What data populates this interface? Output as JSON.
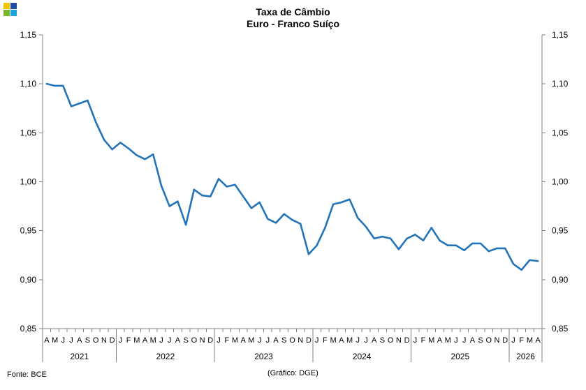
{
  "header": {
    "title": "Taxa de Câmbio",
    "subtitle": "Euro - Franco Suíço"
  },
  "logo": {
    "colors": [
      "#f2c500",
      "#1f4e9e",
      "#76b82a",
      "#1aa3dd"
    ]
  },
  "footer": {
    "source": "Fonte: BCE",
    "credit": "(Gráfico: DGE)"
  },
  "chart_data": {
    "type": "line",
    "title": "Taxa de Câmbio",
    "subtitle": "Euro - Franco Suíço",
    "ylim": [
      0.85,
      1.15
    ],
    "yticks": [
      "0,85",
      "0,90",
      "0,95",
      "1,00",
      "1,05",
      "1,10",
      "1,15"
    ],
    "ytick_values": [
      0.85,
      0.9,
      0.95,
      1.0,
      1.05,
      1.1,
      1.15
    ],
    "y_axis_both_sides": true,
    "grid": false,
    "line_color": "#2373b8",
    "month_labels": [
      "A",
      "M",
      "J",
      "J",
      "A",
      "S",
      "O",
      "N",
      "D",
      "J",
      "F",
      "M",
      "A",
      "M",
      "J",
      "J",
      "A",
      "S",
      "O",
      "N",
      "D",
      "J",
      "F",
      "M",
      "A",
      "M",
      "J",
      "J",
      "A",
      "S",
      "O",
      "N",
      "D",
      "J",
      "F",
      "M",
      "A",
      "M",
      "J",
      "J",
      "A",
      "S",
      "O",
      "N",
      "D",
      "J",
      "F",
      "M",
      "A",
      "M",
      "J",
      "J",
      "A",
      "S",
      "O",
      "N",
      "D",
      "J",
      "F",
      "M",
      "A"
    ],
    "year_groups": [
      {
        "label": "2021",
        "count": 9
      },
      {
        "label": "2022",
        "count": 12
      },
      {
        "label": "2023",
        "count": 12
      },
      {
        "label": "2024",
        "count": 12
      },
      {
        "label": "2025",
        "count": 12
      },
      {
        "label": "2026",
        "count": 4
      }
    ],
    "values": [
      1.1,
      1.098,
      1.098,
      1.077,
      1.08,
      1.083,
      1.061,
      1.043,
      1.033,
      1.04,
      1.034,
      1.027,
      1.023,
      1.028,
      0.996,
      0.975,
      0.98,
      0.956,
      0.992,
      0.986,
      0.985,
      1.003,
      0.995,
      0.997,
      0.985,
      0.973,
      0.979,
      0.962,
      0.958,
      0.967,
      0.961,
      0.957,
      0.926,
      0.935,
      0.953,
      0.977,
      0.979,
      0.982,
      0.963,
      0.954,
      0.942,
      0.944,
      0.942,
      0.931,
      0.942,
      0.946,
      0.94,
      0.953,
      0.94,
      0.935,
      0.935,
      0.93,
      0.937,
      0.937,
      0.929,
      0.932,
      0.932,
      0.916,
      0.91,
      0.92,
      0.919
    ]
  }
}
